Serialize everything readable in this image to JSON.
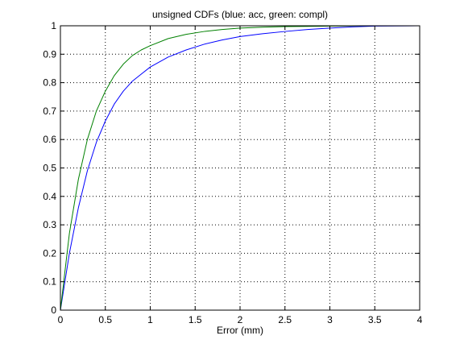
{
  "chart_data": {
    "type": "line",
    "title": "unsigned CDFs (blue: acc, green: compl)",
    "xlabel": "Error (mm)",
    "ylabel": "",
    "xlim": [
      0,
      4
    ],
    "ylim": [
      0,
      1
    ],
    "xticks": [
      "0",
      "0.5",
      "1",
      "1.5",
      "2",
      "2.5",
      "3",
      "3.5",
      "4"
    ],
    "yticks": [
      "0",
      "0.1",
      "0.2",
      "0.3",
      "0.4",
      "0.5",
      "0.6",
      "0.7",
      "0.8",
      "0.9",
      "1"
    ],
    "grid": true,
    "series": [
      {
        "color": "#0000ff",
        "x": [
          0,
          0.1,
          0.2,
          0.3,
          0.4,
          0.5,
          0.6,
          0.7,
          0.8,
          0.9,
          1.0,
          1.2,
          1.4,
          1.6,
          1.8,
          2.0,
          2.25,
          2.5,
          2.75,
          3.0,
          3.25,
          3.5,
          4.0
        ],
        "y": [
          0,
          0.2,
          0.36,
          0.49,
          0.59,
          0.665,
          0.725,
          0.77,
          0.805,
          0.83,
          0.855,
          0.89,
          0.915,
          0.935,
          0.95,
          0.962,
          0.972,
          0.98,
          0.987,
          0.992,
          0.996,
          0.999,
          1.0
        ]
      },
      {
        "color": "#008000",
        "x": [
          0,
          0.1,
          0.2,
          0.3,
          0.4,
          0.5,
          0.6,
          0.7,
          0.8,
          0.9,
          1.0,
          1.2,
          1.4,
          1.6,
          1.8,
          2.0,
          2.25,
          2.5,
          3.0,
          3.5,
          4.0
        ],
        "y": [
          0,
          0.27,
          0.46,
          0.6,
          0.7,
          0.77,
          0.825,
          0.865,
          0.895,
          0.915,
          0.93,
          0.955,
          0.97,
          0.98,
          0.987,
          0.992,
          0.995,
          0.997,
          0.999,
          1.0,
          1.0
        ]
      }
    ]
  }
}
